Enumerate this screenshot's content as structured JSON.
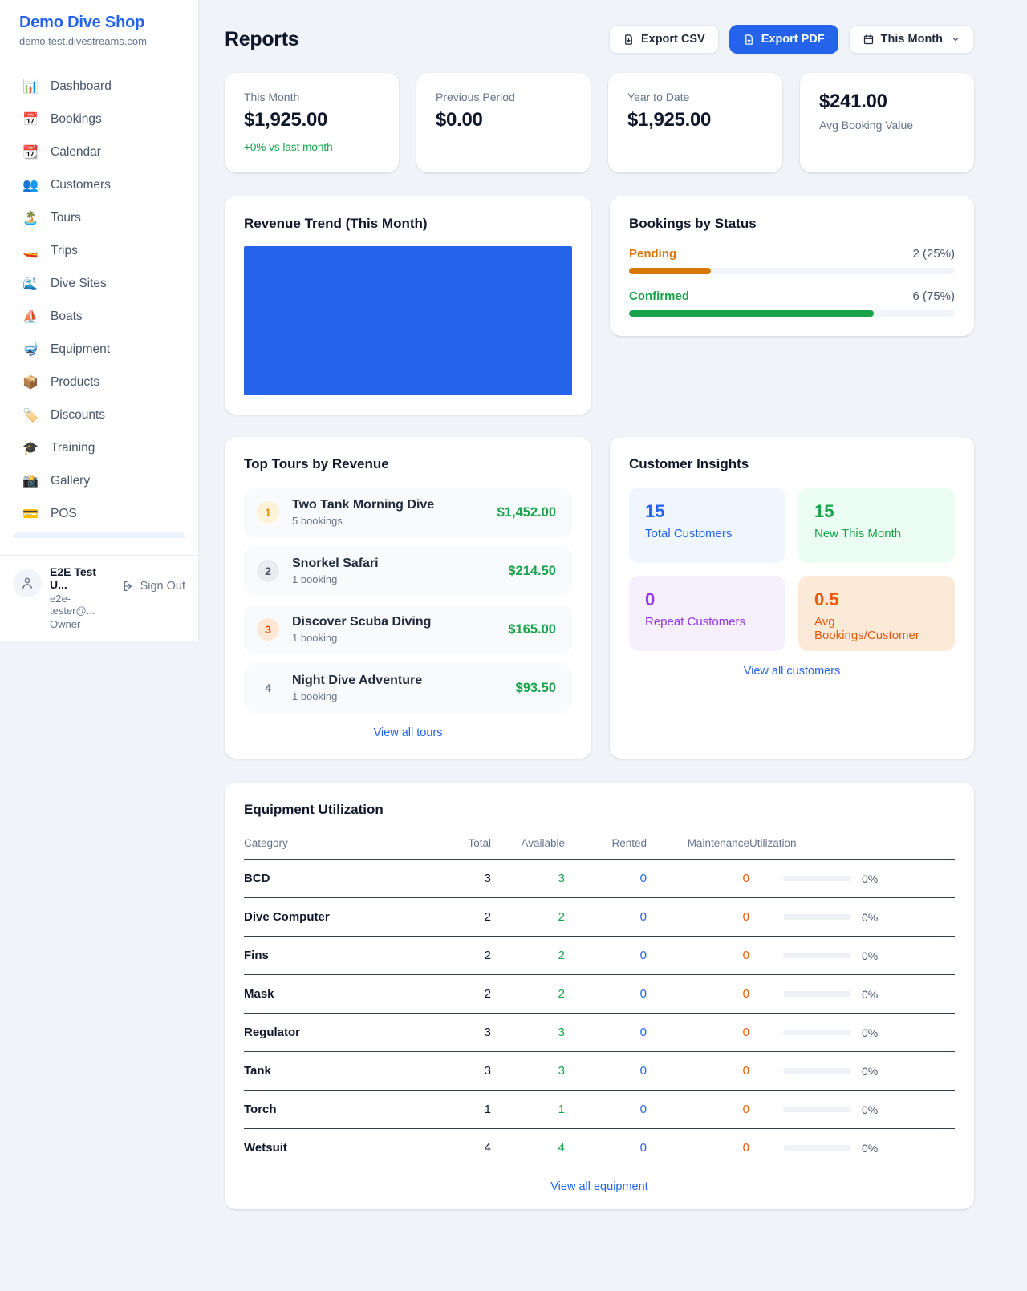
{
  "colors": {
    "accent": "#2563eb",
    "green": "#16a34a",
    "amber": "#d97706",
    "orange": "#ea580c",
    "purple": "#9333ea"
  },
  "sidebar": {
    "shop_name": "Demo Dive Shop",
    "shop_domain": "demo.test.divestreams.com",
    "items": [
      {
        "icon_name": "bar-chart-icon",
        "glyph": "📊",
        "label": "Dashboard"
      },
      {
        "icon_name": "calendar-17-icon",
        "glyph": "📅",
        "label": "Bookings"
      },
      {
        "icon_name": "calendar-icon",
        "glyph": "📆",
        "label": "Calendar"
      },
      {
        "icon_name": "people-icon",
        "glyph": "👥",
        "label": "Customers"
      },
      {
        "icon_name": "island-icon",
        "glyph": "🏝️",
        "label": "Tours"
      },
      {
        "icon_name": "speedboat-icon",
        "glyph": "🚤",
        "label": "Trips"
      },
      {
        "icon_name": "wave-icon",
        "glyph": "🌊",
        "label": "Dive Sites"
      },
      {
        "icon_name": "sailboat-icon",
        "glyph": "⛵",
        "label": "Boats"
      },
      {
        "icon_name": "dive-mask-icon",
        "glyph": "🤿",
        "label": "Equipment"
      },
      {
        "icon_name": "package-icon",
        "glyph": "📦",
        "label": "Products"
      },
      {
        "icon_name": "tag-icon",
        "glyph": "🏷️",
        "label": "Discounts"
      },
      {
        "icon_name": "grad-cap-icon",
        "glyph": "🎓",
        "label": "Training"
      },
      {
        "icon_name": "camera-icon",
        "glyph": "📸",
        "label": "Gallery"
      },
      {
        "icon_name": "credit-card-icon",
        "glyph": "💳",
        "label": "POS"
      }
    ],
    "user": {
      "name": "E2E Test U...",
      "email": "e2e-tester@...",
      "role": "Owner",
      "sign_out_label": "Sign Out"
    }
  },
  "header": {
    "title": "Reports",
    "export_csv_label": "Export CSV",
    "export_pdf_label": "Export PDF",
    "period_label": "This Month"
  },
  "stats": [
    {
      "label": "This Month",
      "value": "$1,925.00",
      "delta": "+0% vs last month"
    },
    {
      "label": "Previous Period",
      "value": "$0.00"
    },
    {
      "label": "Year to Date",
      "value": "$1,925.00"
    },
    {
      "label": "Avg Booking Value",
      "value": "$241.00"
    }
  ],
  "revenue_trend": {
    "title": "Revenue Trend (This Month)"
  },
  "bookings_by_status": {
    "title": "Bookings by Status",
    "rows": [
      {
        "label": "Pending",
        "value": "2 (25%)",
        "percent": 25
      },
      {
        "label": "Confirmed",
        "value": "6 (75%)",
        "percent": 75
      }
    ]
  },
  "top_tours": {
    "title": "Top Tours by Revenue",
    "items": [
      {
        "rank": "1",
        "name": "Two Tank Morning Dive",
        "bookings": "5 bookings",
        "revenue": "$1,452.00"
      },
      {
        "rank": "2",
        "name": "Snorkel Safari",
        "bookings": "1 booking",
        "revenue": "$214.50"
      },
      {
        "rank": "3",
        "name": "Discover Scuba Diving",
        "bookings": "1 booking",
        "revenue": "$165.00"
      },
      {
        "rank": "4",
        "name": "Night Dive Adventure",
        "bookings": "1 booking",
        "revenue": "$93.50"
      }
    ],
    "view_all_label": "View all tours"
  },
  "customer_insights": {
    "title": "Customer Insights",
    "tiles": [
      {
        "value": "15",
        "label": "Total Customers"
      },
      {
        "value": "15",
        "label": "New This Month"
      },
      {
        "value": "0",
        "label": "Repeat Customers"
      },
      {
        "value": "0.5",
        "label": "Avg Bookings/Customer"
      }
    ],
    "view_all_label": "View all customers"
  },
  "equipment": {
    "title": "Equipment Utilization",
    "columns": [
      "Category",
      "Total",
      "Available",
      "Rented",
      "Maintenance",
      "Utilization"
    ],
    "rows": [
      {
        "category": "BCD",
        "total": "3",
        "available": "3",
        "rented": "0",
        "maintenance": "0",
        "utilization": "0%"
      },
      {
        "category": "Dive Computer",
        "total": "2",
        "available": "2",
        "rented": "0",
        "maintenance": "0",
        "utilization": "0%"
      },
      {
        "category": "Fins",
        "total": "2",
        "available": "2",
        "rented": "0",
        "maintenance": "0",
        "utilization": "0%"
      },
      {
        "category": "Mask",
        "total": "2",
        "available": "2",
        "rented": "0",
        "maintenance": "0",
        "utilization": "0%"
      },
      {
        "category": "Regulator",
        "total": "3",
        "available": "3",
        "rented": "0",
        "maintenance": "0",
        "utilization": "0%"
      },
      {
        "category": "Tank",
        "total": "3",
        "available": "3",
        "rented": "0",
        "maintenance": "0",
        "utilization": "0%"
      },
      {
        "category": "Torch",
        "total": "1",
        "available": "1",
        "rented": "0",
        "maintenance": "0",
        "utilization": "0%"
      },
      {
        "category": "Wetsuit",
        "total": "4",
        "available": "4",
        "rented": "0",
        "maintenance": "0",
        "utilization": "0%"
      }
    ],
    "view_all_label": "View all equipment"
  }
}
